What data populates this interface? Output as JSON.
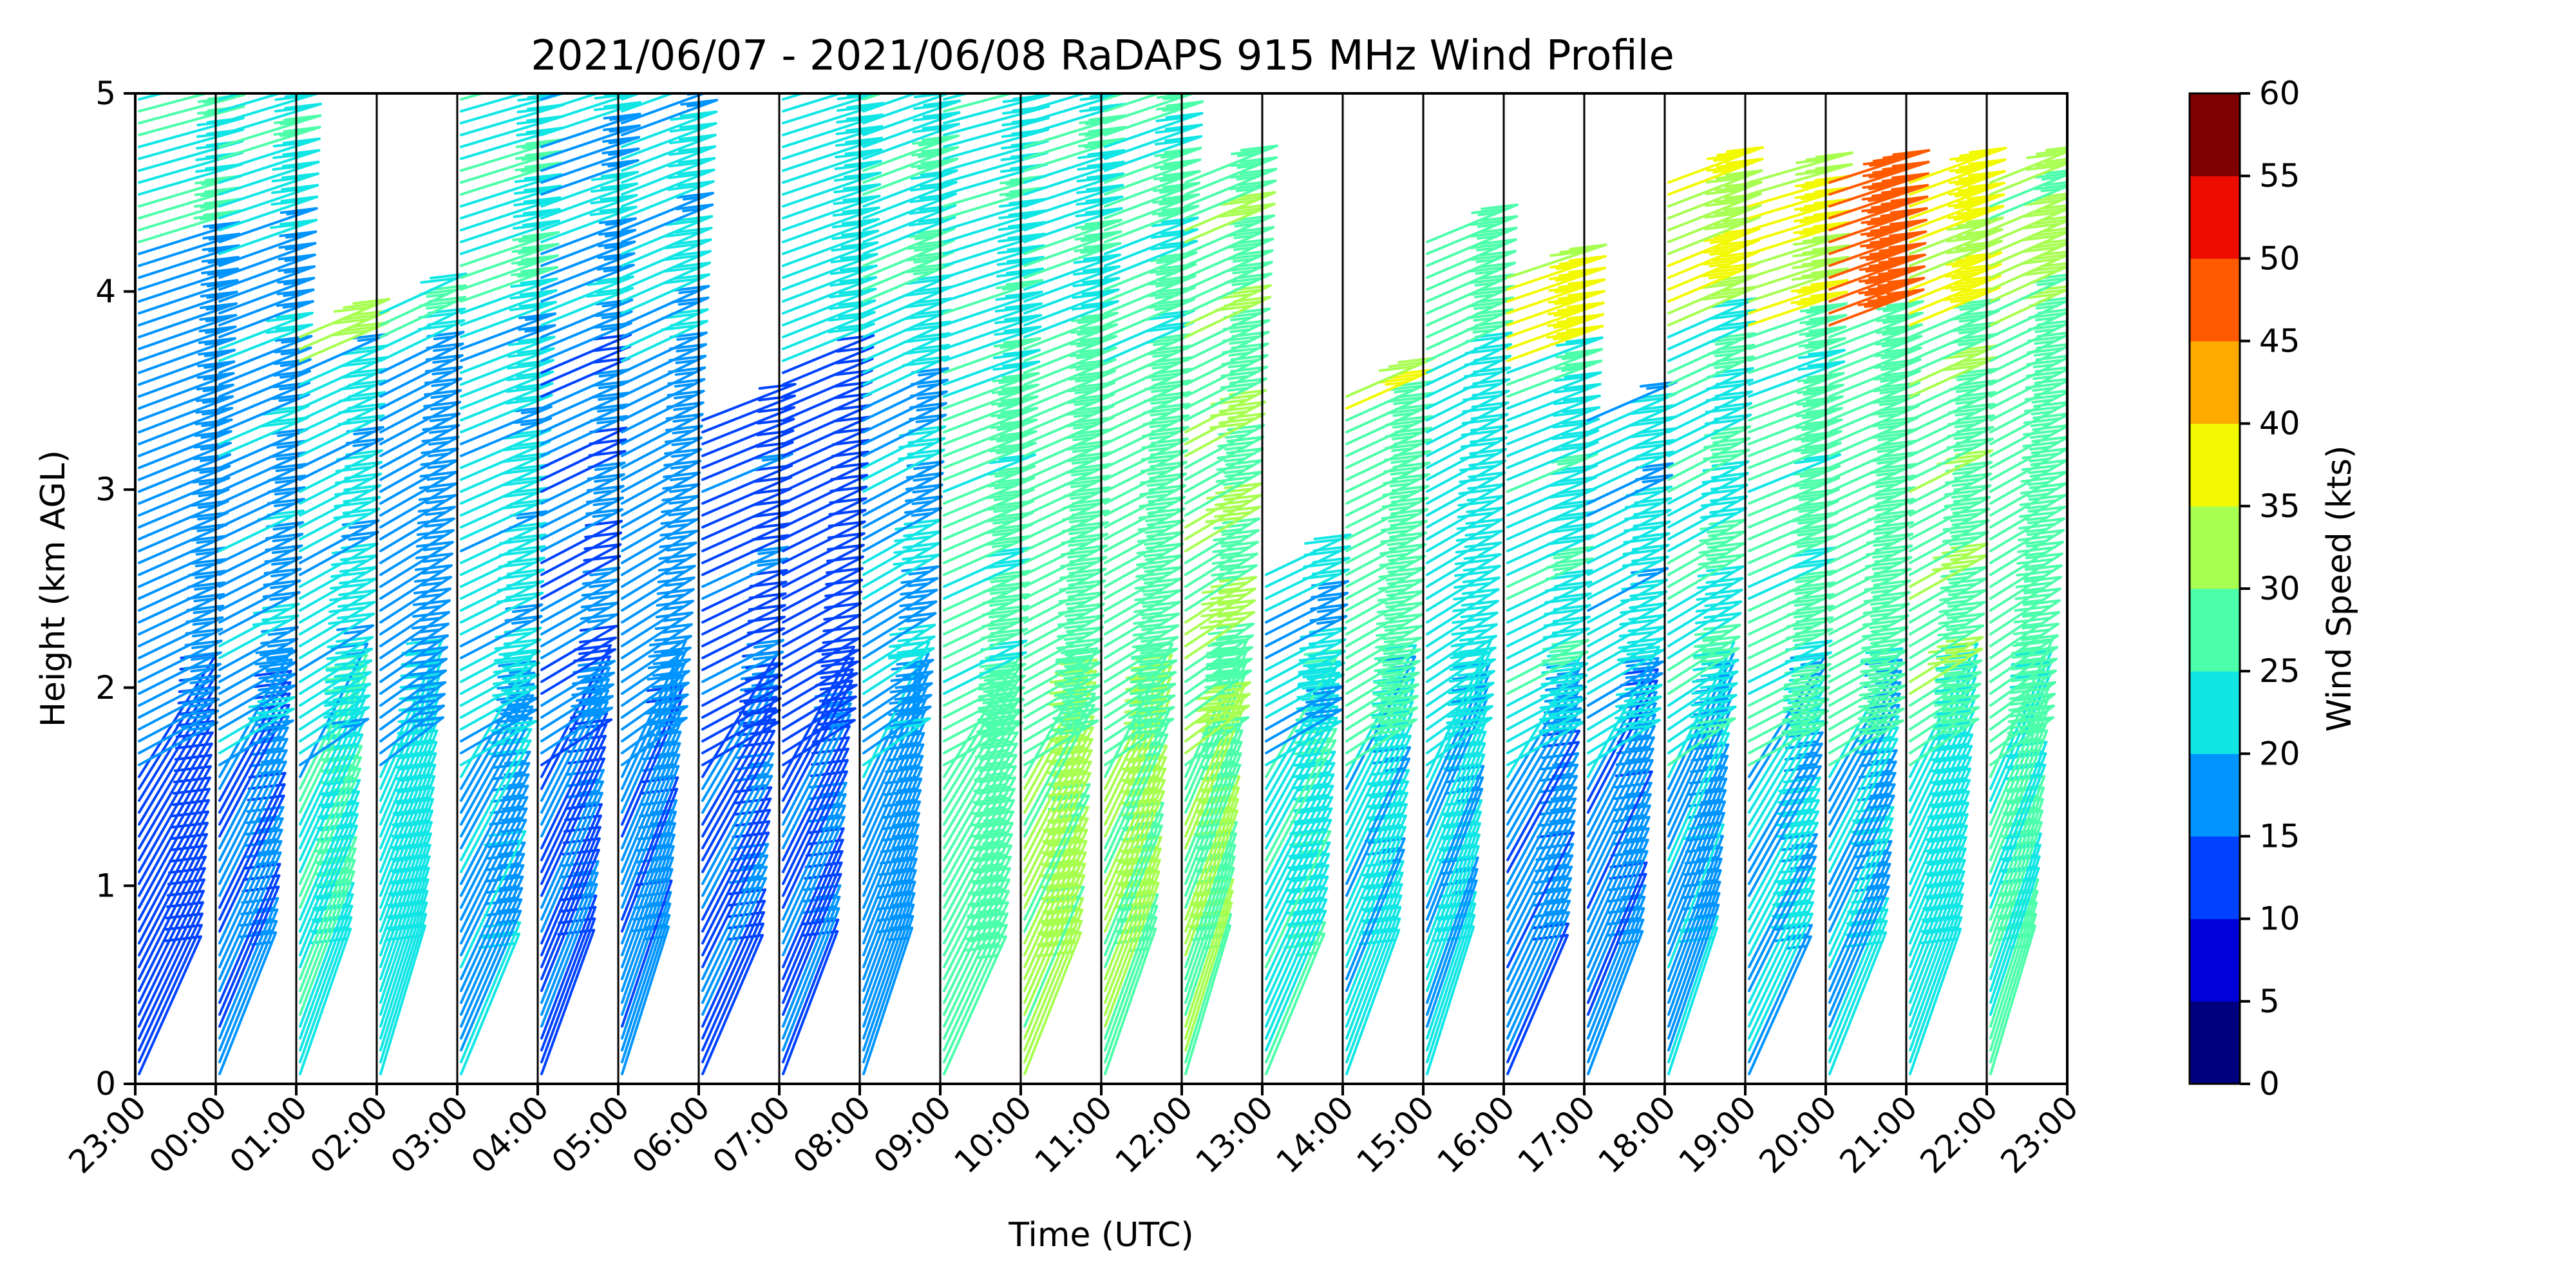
{
  "chart_data": {
    "type": "wind_barbs",
    "title": "2021/06/07 - 2021/06/08 RaDAPS 915 MHz Wind Profile",
    "xlabel": "Time (UTC)",
    "ylabel": "Height (km AGL)",
    "ylim": [
      0,
      5
    ],
    "yticks": [
      "0",
      "1",
      "2",
      "3",
      "4",
      "5"
    ],
    "xticks": [
      "23:00",
      "00:00",
      "01:00",
      "02:00",
      "03:00",
      "04:00",
      "05:00",
      "06:00",
      "07:00",
      "08:00",
      "09:00",
      "10:00",
      "11:00",
      "12:00",
      "13:00",
      "14:00",
      "15:00",
      "16:00",
      "17:00",
      "18:00",
      "19:00",
      "20:00",
      "21:00",
      "22:00",
      "23:00"
    ],
    "colorbar": {
      "label": "Wind Speed (kts)",
      "ticks": [
        "0",
        "5",
        "10",
        "15",
        "20",
        "25",
        "30",
        "35",
        "40",
        "45",
        "50",
        "55",
        "60"
      ],
      "colors": [
        "#00007f",
        "#0000d8",
        "#0042ff",
        "#0094ff",
        "#11e6e5",
        "#4cffaa",
        "#a7ff4f",
        "#f3f900",
        "#ffaa00",
        "#ff5a00",
        "#ed0c00",
        "#7f0000"
      ]
    },
    "profiles": [
      {
        "time": "23:00",
        "low": {
          "speed": 12,
          "top": 1.6
        },
        "mid": {
          "speed": 17,
          "top": 4.2
        },
        "high": {
          "speed": 24,
          "top": 5.0
        }
      },
      {
        "time": "00:00",
        "low": {
          "speed": 15,
          "top": 1.6
        },
        "mid": {
          "speed": 18,
          "top": 4.3
        },
        "high": {
          "speed": 23,
          "top": 5.0
        }
      },
      {
        "time": "01:00",
        "low": {
          "speed": 24,
          "top": 1.5
        },
        "mid": {
          "speed": 21,
          "top": 3.6
        },
        "high": {
          "speed": 32,
          "top": 3.8
        }
      },
      {
        "time": "02:00",
        "low": {
          "speed": 22,
          "top": 1.6
        },
        "mid": {
          "speed": 17,
          "top": 3.6
        },
        "high": {
          "speed": 23,
          "top": 3.9
        }
      },
      {
        "time": "03:00",
        "low": {
          "speed": 18,
          "top": 1.5
        },
        "mid": {
          "speed": 21,
          "top": 3.9
        },
        "high": {
          "speed": 24,
          "top": 5.0
        }
      },
      {
        "time": "04:00",
        "low": {
          "speed": 14,
          "top": 1.5
        },
        "mid": {
          "speed": 15,
          "top": 3.8
        },
        "high": {
          "speed": 19,
          "top": 5.0
        }
      },
      {
        "time": "05:00",
        "low": {
          "speed": 16,
          "top": 1.5
        },
        "mid": {
          "speed": 17,
          "top": 3.6
        },
        "high": {
          "speed": 21,
          "top": 5.0
        }
      },
      {
        "time": "06:00",
        "low": {
          "speed": 14,
          "top": 1.5
        },
        "mid": {
          "speed": 13,
          "top": 3.4
        },
        "high": {
          "speed": 13,
          "top": 3.4
        }
      },
      {
        "time": "07:00",
        "low": {
          "speed": 14,
          "top": 1.5
        },
        "mid": {
          "speed": 12,
          "top": 3.6
        },
        "high": {
          "speed": 22,
          "top": 5.0
        }
      },
      {
        "time": "08:00",
        "low": {
          "speed": 17,
          "top": 1.5
        },
        "mid": {
          "speed": 19,
          "top": 3.6
        },
        "high": {
          "speed": 24,
          "top": 5.0
        }
      },
      {
        "time": "09:00",
        "low": {
          "speed": 27,
          "top": 1.5
        },
        "mid": {
          "speed": 26,
          "top": 3.6
        },
        "high": {
          "speed": 23,
          "top": 5.0
        }
      },
      {
        "time": "10:00",
        "low": {
          "speed": 31,
          "top": 1.5
        },
        "mid": {
          "speed": 27,
          "top": 3.6
        },
        "high": {
          "speed": 24,
          "top": 5.0
        }
      },
      {
        "time": "11:00",
        "low": {
          "speed": 30,
          "top": 1.5
        },
        "mid": {
          "speed": 27,
          "top": 3.6
        },
        "high": {
          "speed": 25,
          "top": 5.0
        }
      },
      {
        "time": "12:00",
        "low": {
          "speed": 29,
          "top": 1.5
        },
        "mid": {
          "speed": 29,
          "top": 3.6
        },
        "high": {
          "speed": 28,
          "top": 4.6
        }
      },
      {
        "time": "13:00",
        "low": {
          "speed": 23,
          "top": 1.6
        },
        "mid": {
          "speed": 20,
          "top": 2.6
        },
        "high": {
          "speed": 20,
          "top": 2.6
        }
      },
      {
        "time": "14:00",
        "low": {
          "speed": 21,
          "top": 1.6
        },
        "mid": {
          "speed": 27,
          "top": 3.4
        },
        "high": {
          "speed": 36,
          "top": 3.5
        }
      },
      {
        "time": "15:00",
        "low": {
          "speed": 20,
          "top": 1.6
        },
        "mid": {
          "speed": 22,
          "top": 3.6
        },
        "high": {
          "speed": 27,
          "top": 4.3
        }
      },
      {
        "time": "16:00",
        "low": {
          "speed": 16,
          "top": 1.5
        },
        "mid": {
          "speed": 23,
          "top": 3.6
        },
        "high": {
          "speed": 36,
          "top": 4.1
        }
      },
      {
        "time": "17:00",
        "low": {
          "speed": 16,
          "top": 1.5
        },
        "mid": {
          "speed": 21,
          "top": 3.4
        },
        "high": {
          "speed": 21,
          "top": 3.4
        }
      },
      {
        "time": "18:00",
        "low": {
          "speed": 18,
          "top": 1.6
        },
        "mid": {
          "speed": 24,
          "top": 3.8
        },
        "high": {
          "speed": 34,
          "top": 4.6
        }
      },
      {
        "time": "19:00",
        "low": {
          "speed": 20,
          "top": 1.6
        },
        "mid": {
          "speed": 26,
          "top": 3.8
        },
        "high": {
          "speed": 35,
          "top": 4.6
        }
      },
      {
        "time": "20:00",
        "low": {
          "speed": 19,
          "top": 1.6
        },
        "mid": {
          "speed": 27,
          "top": 3.8
        },
        "high": {
          "speed": 47,
          "top": 4.6
        }
      },
      {
        "time": "21:00",
        "low": {
          "speed": 22,
          "top": 1.6
        },
        "mid": {
          "speed": 28,
          "top": 3.8
        },
        "high": {
          "speed": 35,
          "top": 4.6
        }
      },
      {
        "time": "22:00",
        "low": {
          "speed": 25,
          "top": 1.6
        },
        "mid": {
          "speed": 27,
          "top": 3.8
        },
        "high": {
          "speed": 31,
          "top": 4.6
        }
      }
    ],
    "grid": "vertical lines at each hour",
    "legend": "colorbar right"
  }
}
